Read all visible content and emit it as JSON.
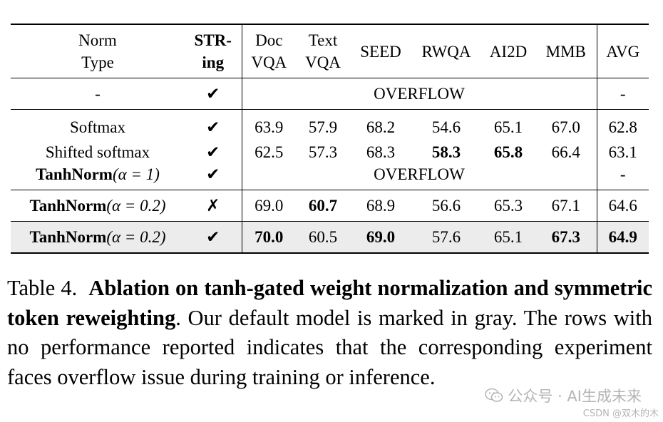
{
  "table": {
    "header": {
      "norm_type": [
        "Norm",
        "Type"
      ],
      "string": [
        "STR-",
        "ing"
      ],
      "docvqa": [
        "Doc",
        "VQA"
      ],
      "textvqa": [
        "Text",
        "VQA"
      ],
      "seed": "SEED",
      "rwqa": "RWQA",
      "ai2d": "AI2D",
      "mmb": "MMB",
      "avg": "AVG"
    },
    "rows": [
      {
        "norm": "-",
        "str": "✔",
        "overflow": "OVERFLOW",
        "avg": "-"
      },
      {
        "norm": "Softmax",
        "str": "✔",
        "values": [
          "63.9",
          "57.9",
          "68.2",
          "54.6",
          "65.1",
          "67.0"
        ],
        "avg": "62.8"
      },
      {
        "norm": "Shifted softmax",
        "str": "✔",
        "values": [
          "62.5",
          "57.3",
          "68.3",
          "58.3",
          "65.8",
          "66.4"
        ],
        "avg": "63.1"
      },
      {
        "norm_bold": "TanhNorm",
        "norm_math": "(α = 1)",
        "str": "✔",
        "overflow": "OVERFLOW",
        "avg": "-"
      },
      {
        "norm_bold": "TanhNorm",
        "norm_math": "(α = 0.2)",
        "str": "✗",
        "values": [
          "69.0",
          "60.7",
          "68.9",
          "56.6",
          "65.3",
          "67.1"
        ],
        "avg": "64.6"
      },
      {
        "norm_bold": "TanhNorm",
        "norm_math": "(α = 0.2)",
        "str": "✔",
        "values": [
          "70.0",
          "60.5",
          "69.0",
          "57.6",
          "65.1",
          "67.3"
        ],
        "avg": "64.9"
      }
    ]
  },
  "caption": {
    "label": "Table 4.",
    "title": "Ablation on tanh-gated weight normalization and symmetric token reweighting",
    "body": ". Our default model is marked in gray. The rows with no performance reported indicates that the corresponding experiment faces overflow issue during training or inference."
  },
  "watermark": {
    "line1": "公众号 · AI生成未来",
    "line2": "CSDN @双木的木"
  }
}
